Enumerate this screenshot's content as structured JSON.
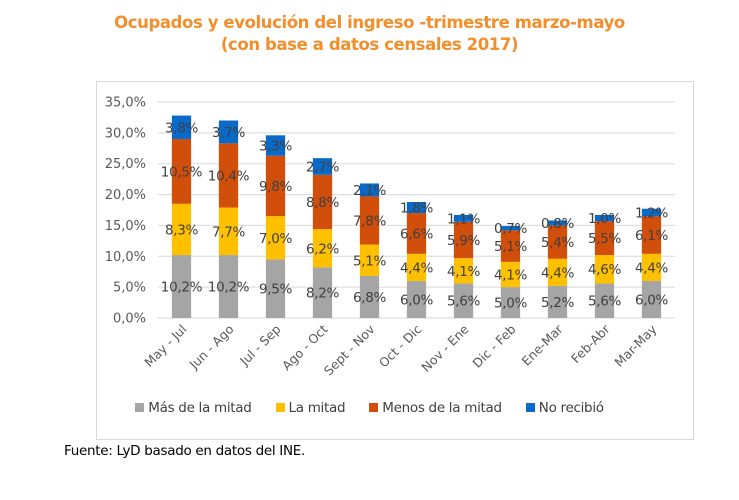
{
  "chart_data": {
    "type": "bar",
    "stacked": true,
    "title": "Ocupados y evolución del ingreso -trimestre marzo-mayo",
    "subtitle": "(con base a datos censales 2017)",
    "xlabel": "",
    "ylabel": "",
    "ylim": [
      0,
      35
    ],
    "yticks": [
      "0,0%",
      "5,0%",
      "10,0%",
      "15,0%",
      "20,0%",
      "25,0%",
      "30,0%",
      "35,0%"
    ],
    "ytick_values": [
      0,
      5,
      10,
      15,
      20,
      25,
      30,
      35
    ],
    "grid": true,
    "legend_position": "bottom",
    "categories": [
      "May - Jul",
      "Jun - Ago",
      "Jul - Sep",
      "Ago - Oct",
      "Sept - Nov",
      "Oct - Dic",
      "Nov - Ene",
      "Dic - Feb",
      "Ene-Mar",
      "Feb-Abr",
      "Mar-May"
    ],
    "series": [
      {
        "name": "Más de la mitad",
        "color": "#a5a5a5",
        "values": [
          10.2,
          10.2,
          9.5,
          8.2,
          6.8,
          6.0,
          5.6,
          5.0,
          5.2,
          5.6,
          6.0
        ],
        "labels": [
          "10,2%",
          "10,2%",
          "9,5%",
          "8,2%",
          "6,8%",
          "6,0%",
          "5,6%",
          "5,0%",
          "5,2%",
          "5,6%",
          "6,0%"
        ]
      },
      {
        "name": "La mitad",
        "color": "#ffc000",
        "values": [
          8.3,
          7.7,
          7.0,
          6.2,
          5.1,
          4.4,
          4.1,
          4.1,
          4.4,
          4.6,
          4.4
        ],
        "labels": [
          "8,3%",
          "7,7%",
          "7,0%",
          "6,2%",
          "5,1%",
          "4,4%",
          "4,1%",
          "4,1%",
          "4,4%",
          "4,6%",
          "4,4%"
        ]
      },
      {
        "name": "Menos de la mitad",
        "color": "#d24f0b",
        "values": [
          10.5,
          10.4,
          9.8,
          8.8,
          7.8,
          6.6,
          5.9,
          5.1,
          5.4,
          5.5,
          6.1
        ],
        "labels": [
          "10,5%",
          "10,4%",
          "9,8%",
          "8,8%",
          "7,8%",
          "6,6%",
          "5,9%",
          "5,1%",
          "5,4%",
          "5,5%",
          "6,1%"
        ]
      },
      {
        "name": "No recibió",
        "color": "#0a6ac9",
        "values": [
          3.8,
          3.7,
          3.3,
          2.7,
          2.1,
          1.8,
          1.1,
          0.7,
          0.8,
          1.0,
          1.2
        ],
        "labels": [
          "3,8%",
          "3,7%",
          "3,3%",
          "2,7%",
          "2,1%",
          "1,8%",
          "1,1%",
          "0,7%",
          "0,8%",
          "1,0%",
          "1,2%"
        ]
      }
    ]
  },
  "source_note": "Fuente: LyD basado en datos del INE."
}
